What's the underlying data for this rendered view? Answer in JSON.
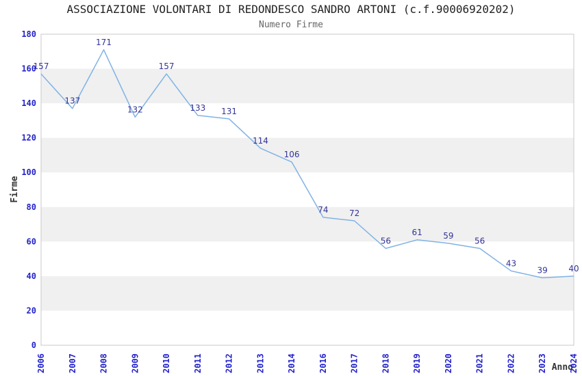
{
  "chart_data": {
    "type": "line",
    "title": "ASSOCIAZIONE VOLONTARI DI REDONDESCO SANDRO ARTONI (c.f.90006920202)",
    "subtitle": "Numero Firme",
    "xlabel": "Anno",
    "ylabel": "Firme",
    "categories": [
      "2006",
      "2007",
      "2008",
      "2009",
      "2010",
      "2011",
      "2012",
      "2013",
      "2014",
      "2016",
      "2017",
      "2018",
      "2019",
      "2020",
      "2021",
      "2022",
      "2023",
      "2024"
    ],
    "values": [
      157,
      137,
      171,
      132,
      157,
      133,
      131,
      114,
      106,
      74,
      72,
      56,
      61,
      59,
      56,
      43,
      39,
      40
    ],
    "ylim": [
      0,
      180
    ],
    "ytick_step": 20,
    "yticks": [
      0,
      20,
      40,
      60,
      80,
      100,
      120,
      140,
      160,
      180
    ],
    "grid": "alternating-horizontal-bands",
    "legend": "none",
    "data_labels_shown": true,
    "colors": {
      "line": "#7FB2E5",
      "data_label": "#333399",
      "tick_label": "#2222CC",
      "band": "#F0F0F0",
      "plot_border": "#C8C8C8",
      "title": "#222222",
      "subtitle": "#666666",
      "axis_title": "#333333",
      "background": "#FFFFFF"
    }
  }
}
